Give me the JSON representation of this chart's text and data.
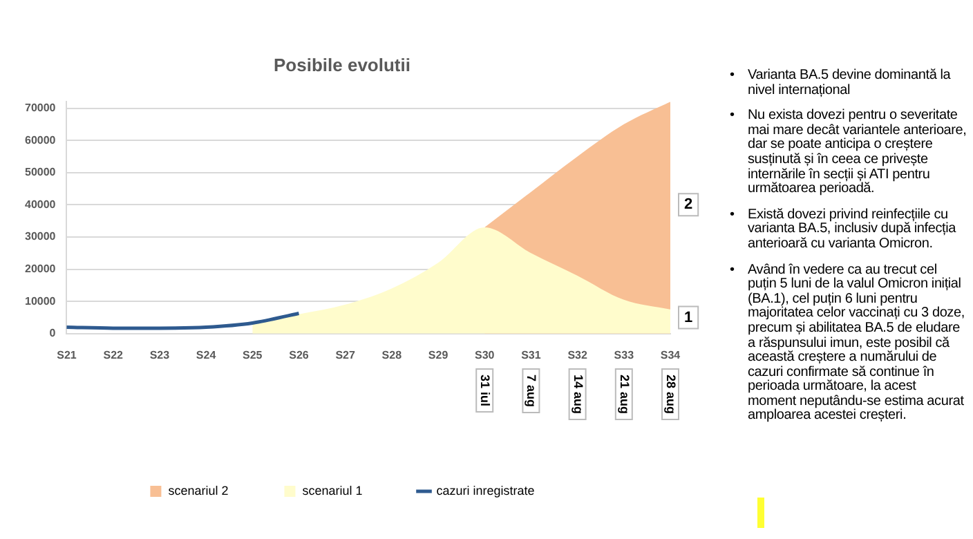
{
  "chart_data": {
    "type": "area",
    "title": "Posibile evolutii",
    "categories": [
      "S21",
      "S22",
      "S23",
      "S24",
      "S25",
      "S26",
      "S27",
      "S28",
      "S29",
      "S30",
      "S31",
      "S32",
      "S33",
      "S34"
    ],
    "series": [
      {
        "name": "scenariul 2",
        "color": "#f8bf94",
        "values": [
          null,
          null,
          null,
          null,
          null,
          null,
          null,
          null,
          null,
          33000,
          44000,
          55000,
          65000,
          72000
        ]
      },
      {
        "name": "scenariul 1",
        "color": "#fffccc",
        "values": [
          null,
          null,
          null,
          null,
          3300,
          6000,
          9000,
          14000,
          22000,
          33000,
          25000,
          18000,
          10500,
          7500
        ]
      },
      {
        "name": "cazuri inregistrate",
        "type": "line",
        "color": "#2e5a8f",
        "values": [
          2000,
          1700,
          1700,
          2000,
          3300,
          6300,
          null,
          null,
          null,
          null,
          null,
          null,
          null,
          null
        ]
      }
    ],
    "ylim": [
      0,
      72000
    ],
    "yticks": [
      0,
      10000,
      20000,
      30000,
      40000,
      50000,
      60000,
      70000
    ],
    "grid": "y",
    "legend": "bottom",
    "marker": "none",
    "annotations": [
      "31 iul",
      "7 aug",
      "14 aug",
      "21 aug",
      "28 aug",
      {
        "text": "2",
        "x": "S34",
        "y": 40000
      },
      {
        "text": "1",
        "x": "S34",
        "y": 5000
      },
      "• Varianta BA.5 devine dominantă la nivel internațional",
      "• Nu exista dovezi pentru o severitate mai mare decât variantele anterioare, dar se poate anticipa o creștere susținută și în ceea ce privește internările în secții și ATI pentru următoarea perioadă.",
      "• Există dovezi privind reinfecțiile cu varianta BA.5, inclusiv după infecția anterioară cu varianta Omicron.",
      "• Având în vedere ca au trecut cel puțin 5 luni de la valul Omicron inițial (BA.1), cel puțin 6 luni pentru majoritatea celor vaccinați cu 3 doze, precum și abilitatea BA.5 de eludare a răspunsului imun, este posibil că această creștere a numărului de cazuri confirmate să continue în perioada următoare, la acest moment neputându-se estima acurat amploarea acestei creșteri."
    ]
  }
}
